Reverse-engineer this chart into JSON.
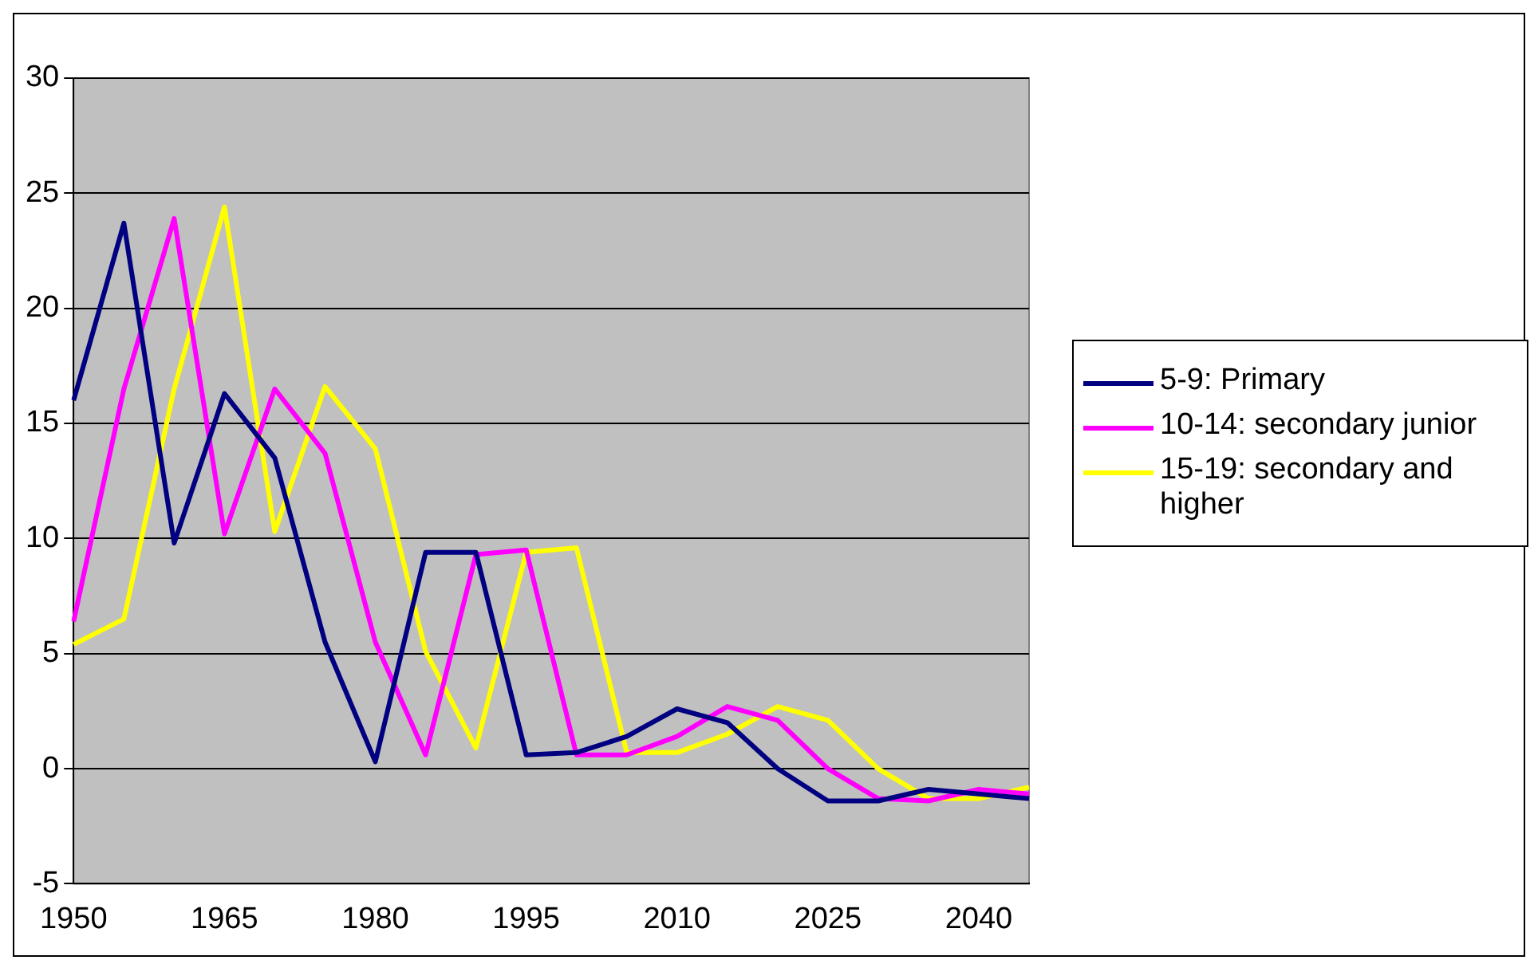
{
  "chart_data": {
    "type": "line",
    "categories": [
      "1950",
      null,
      null,
      "1965",
      null,
      null,
      "1980",
      null,
      null,
      "1995",
      null,
      null,
      "2010",
      null,
      null,
      "2025",
      null,
      null,
      "2040",
      null
    ],
    "series": [
      {
        "name": "5-9: Primary",
        "color": "#000080",
        "values": [
          16.0,
          23.7,
          9.8,
          16.3,
          13.5,
          5.5,
          0.3,
          9.4,
          9.4,
          0.6,
          0.7,
          1.4,
          2.6,
          2.0,
          0,
          -1.4,
          -1.4,
          -0.9,
          -1.1,
          -1.3
        ]
      },
      {
        "name": "10-14: secondary junior",
        "color": "#ff00ff",
        "values": [
          6.4,
          16.5,
          23.9,
          10.2,
          16.5,
          13.7,
          5.5,
          0.6,
          9.3,
          9.5,
          0.6,
          0.6,
          1.4,
          2.7,
          2.1,
          0,
          -1.3,
          -1.4,
          -0.9,
          -1.1
        ]
      },
      {
        "name": "15-19: secondary and higher",
        "color": "#ffff00",
        "values": [
          5.4,
          6.5,
          16.5,
          24.4,
          10.3,
          16.6,
          13.9,
          5.1,
          0.9,
          9.4,
          9.6,
          0.7,
          0.7,
          1.5,
          2.7,
          2.1,
          0,
          -1.3,
          -1.3,
          -0.8
        ]
      }
    ],
    "ylim": [
      -5,
      30
    ],
    "yticks": [
      -5,
      0,
      5,
      10,
      15,
      20,
      25,
      30
    ],
    "grid": "y",
    "legend": "right",
    "marker": "none",
    "line_style": "solid"
  }
}
